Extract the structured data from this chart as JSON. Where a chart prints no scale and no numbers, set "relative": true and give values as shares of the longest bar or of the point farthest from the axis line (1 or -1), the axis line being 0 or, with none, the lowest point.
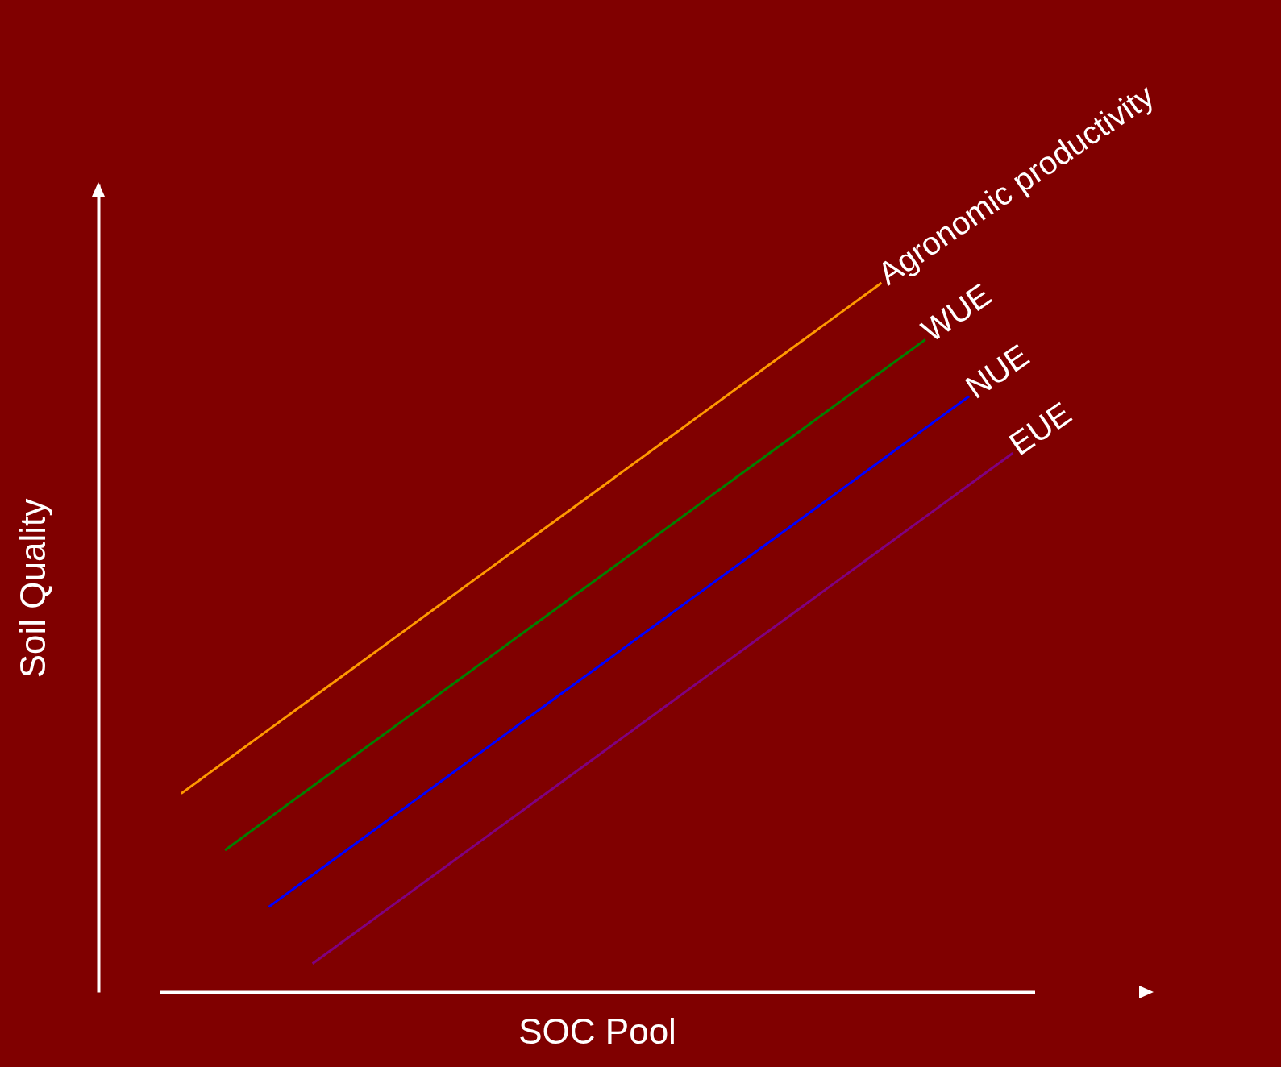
{
  "chart_data": {
    "type": "line",
    "relative": true,
    "xlabel": "SOC Pool",
    "ylabel": "Soil Quality",
    "grid": false,
    "legend": false,
    "line_style": "solid",
    "marker": "none",
    "categories": [
      null,
      null,
      null,
      null,
      null,
      null,
      null,
      null,
      null,
      null,
      null,
      null,
      null,
      null,
      null,
      null,
      null,
      null,
      null,
      null
    ],
    "series": [
      {
        "name": "Agronomic productivity",
        "color": "#ff9900",
        "values": [
          0.28,
          0.325,
          0.37,
          0.415,
          0.46,
          0.505,
          0.55,
          0.595,
          0.64,
          0.685,
          0.73,
          0.775,
          0.82,
          0.865,
          0.91,
          0.955,
          1,
          null,
          null,
          null
        ]
      },
      {
        "name": "WUE",
        "color": "#008000",
        "values": [
          null,
          0.2,
          0.245,
          0.29,
          0.335,
          0.38,
          0.425,
          0.47,
          0.515,
          0.56,
          0.605,
          0.65,
          0.695,
          0.74,
          0.785,
          0.83,
          0.875,
          0.92,
          null,
          null
        ]
      },
      {
        "name": "NUE",
        "color": "#0000ff",
        "values": [
          null,
          null,
          0.12,
          0.165,
          0.21,
          0.255,
          0.3,
          0.345,
          0.39,
          0.435,
          0.48,
          0.525,
          0.57,
          0.615,
          0.66,
          0.705,
          0.75,
          0.795,
          0.84,
          null
        ]
      },
      {
        "name": "EUE",
        "color": "#800080",
        "values": [
          null,
          null,
          null,
          0.04,
          0.085,
          0.13,
          0.175,
          0.22,
          0.265,
          0.31,
          0.355,
          0.4,
          0.445,
          0.49,
          0.535,
          0.58,
          0.625,
          0.67,
          0.715,
          0.76
        ]
      }
    ]
  }
}
